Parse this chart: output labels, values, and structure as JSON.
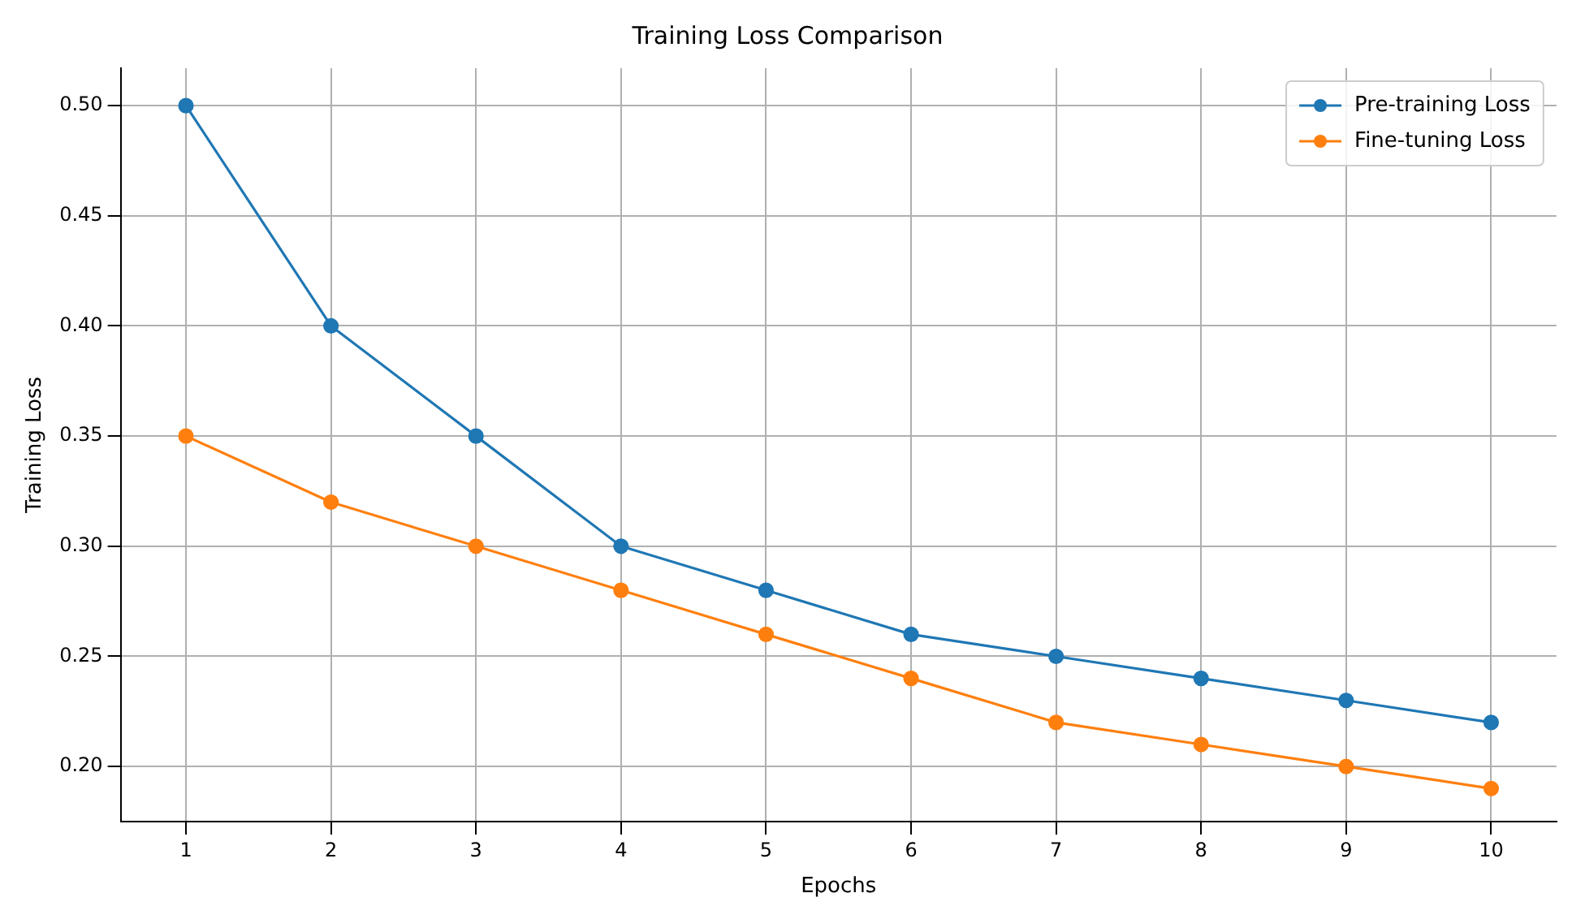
{
  "chart_data": {
    "type": "line",
    "title": "Training Loss Comparison",
    "xlabel": "Epochs",
    "ylabel": "Training Loss",
    "x": [
      1,
      2,
      3,
      4,
      5,
      6,
      7,
      8,
      9,
      10
    ],
    "series": [
      {
        "name": "Pre-training Loss",
        "color": "#1f77b4",
        "values": [
          0.5,
          0.4,
          0.35,
          0.3,
          0.28,
          0.26,
          0.25,
          0.24,
          0.23,
          0.22
        ]
      },
      {
        "name": "Fine-tuning Loss",
        "color": "#ff7f0e",
        "values": [
          0.35,
          0.32,
          0.3,
          0.28,
          0.26,
          0.24,
          0.22,
          0.21,
          0.2,
          0.19
        ]
      }
    ],
    "xlim": [
      0.55,
      10.45
    ],
    "xticks": [
      1,
      2,
      3,
      4,
      5,
      6,
      7,
      8,
      9,
      10
    ],
    "ylim": [
      0.175,
      0.517
    ],
    "yticks": [
      {
        "value": 0.2,
        "label": "0.20"
      },
      {
        "value": 0.25,
        "label": "0.25"
      },
      {
        "value": 0.3,
        "label": "0.30"
      },
      {
        "value": 0.35,
        "label": "0.35"
      },
      {
        "value": 0.4,
        "label": "0.40"
      },
      {
        "value": 0.45,
        "label": "0.45"
      },
      {
        "value": 0.5,
        "label": "0.50"
      }
    ],
    "grid": true,
    "legend": "top right",
    "marker": "circle",
    "line_style": "solid"
  }
}
